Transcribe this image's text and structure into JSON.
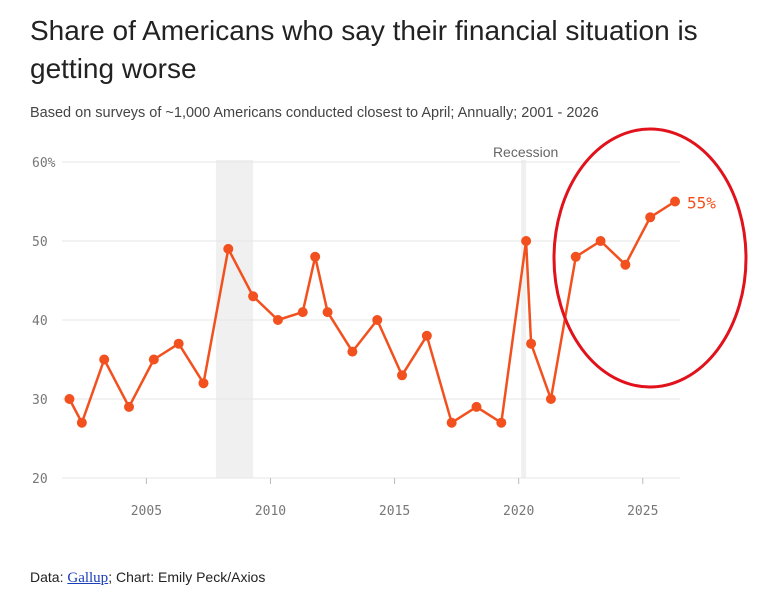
{
  "header": {
    "title": "Share of Americans who say their financial situation is getting worse",
    "subtitle": "Based on surveys of ~1,000 Americans conducted closest to April; Annually; 2001 - 2026"
  },
  "footer": {
    "data_prefix": "Data: ",
    "source_link": "Gallup",
    "suffix": "; Chart: Emily Peck/Axios"
  },
  "colors": {
    "line": "#f2511f",
    "recession_band": "#f0f0f0",
    "grid": "#e6e6e6",
    "highlight_circle": "#e1121b"
  },
  "chart_data": {
    "type": "line",
    "title": "Share of Americans who say their financial situation is getting worse",
    "xlabel": "",
    "ylabel": "",
    "xlim": [
      2001.6,
      2026.5
    ],
    "ylim": [
      20,
      60
    ],
    "y_ticks": [
      20,
      30,
      40,
      50,
      60
    ],
    "y_tick_labels": [
      "20",
      "30",
      "40",
      "50",
      "60%"
    ],
    "x_ticks": [
      2005,
      2010,
      2015,
      2020,
      2025
    ],
    "x_tick_labels": [
      "2005",
      "2010",
      "2015",
      "2020",
      "2025"
    ],
    "grid": true,
    "series": [
      {
        "name": "Getting worse",
        "x": [
          2001.9,
          2002.4,
          2003.3,
          2004.3,
          2005.3,
          2006.3,
          2007.3,
          2008.3,
          2009.3,
          2010.3,
          2011.3,
          2011.8,
          2012.3,
          2013.3,
          2014.3,
          2015.3,
          2016.3,
          2017.3,
          2018.3,
          2019.3,
          2020.3,
          2020.5,
          2021.3,
          2022.3,
          2023.3,
          2024.3,
          2025.3,
          2026.3
        ],
        "values": [
          30,
          27,
          35,
          29,
          35,
          37,
          32,
          49,
          43,
          40,
          41,
          48,
          41,
          36,
          40,
          33,
          38,
          27,
          29,
          27,
          50,
          37,
          30,
          48,
          50,
          47,
          53,
          55
        ]
      }
    ],
    "recessions": [
      {
        "start": 2007.8,
        "end": 2009.3
      },
      {
        "start": 2020.1,
        "end": 2020.3
      }
    ],
    "recession_label": "Recession",
    "end_label": "55%"
  }
}
